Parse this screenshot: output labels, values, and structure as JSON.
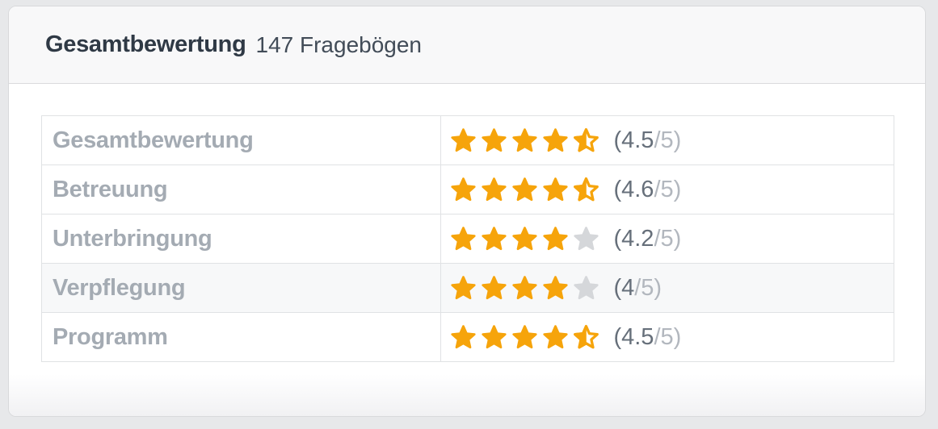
{
  "header": {
    "title": "Gesamtbewertung",
    "subtitle": "147 Fragebögen"
  },
  "ratings": {
    "total_stars": 5,
    "rows": [
      {
        "label": "Gesamtbewertung",
        "value": "4.5",
        "max": "5",
        "full_stars": 4,
        "half_star": true,
        "highlighted": false
      },
      {
        "label": "Betreuung",
        "value": "4.6",
        "max": "5",
        "full_stars": 4,
        "half_star": true,
        "highlighted": false
      },
      {
        "label": "Unterbringung",
        "value": "4.2",
        "max": "5",
        "full_stars": 4,
        "half_star": false,
        "highlighted": false
      },
      {
        "label": "Verpflegung",
        "value": "4",
        "max": "5",
        "full_stars": 4,
        "half_star": false,
        "highlighted": true
      },
      {
        "label": "Programm",
        "value": "4.5",
        "max": "5",
        "full_stars": 4,
        "half_star": true,
        "highlighted": false
      }
    ]
  },
  "colors": {
    "star_filled": "#f6a40b",
    "star_empty": "#d5d7da",
    "score_value": "#666f7a",
    "score_max": "#b2b7be"
  }
}
